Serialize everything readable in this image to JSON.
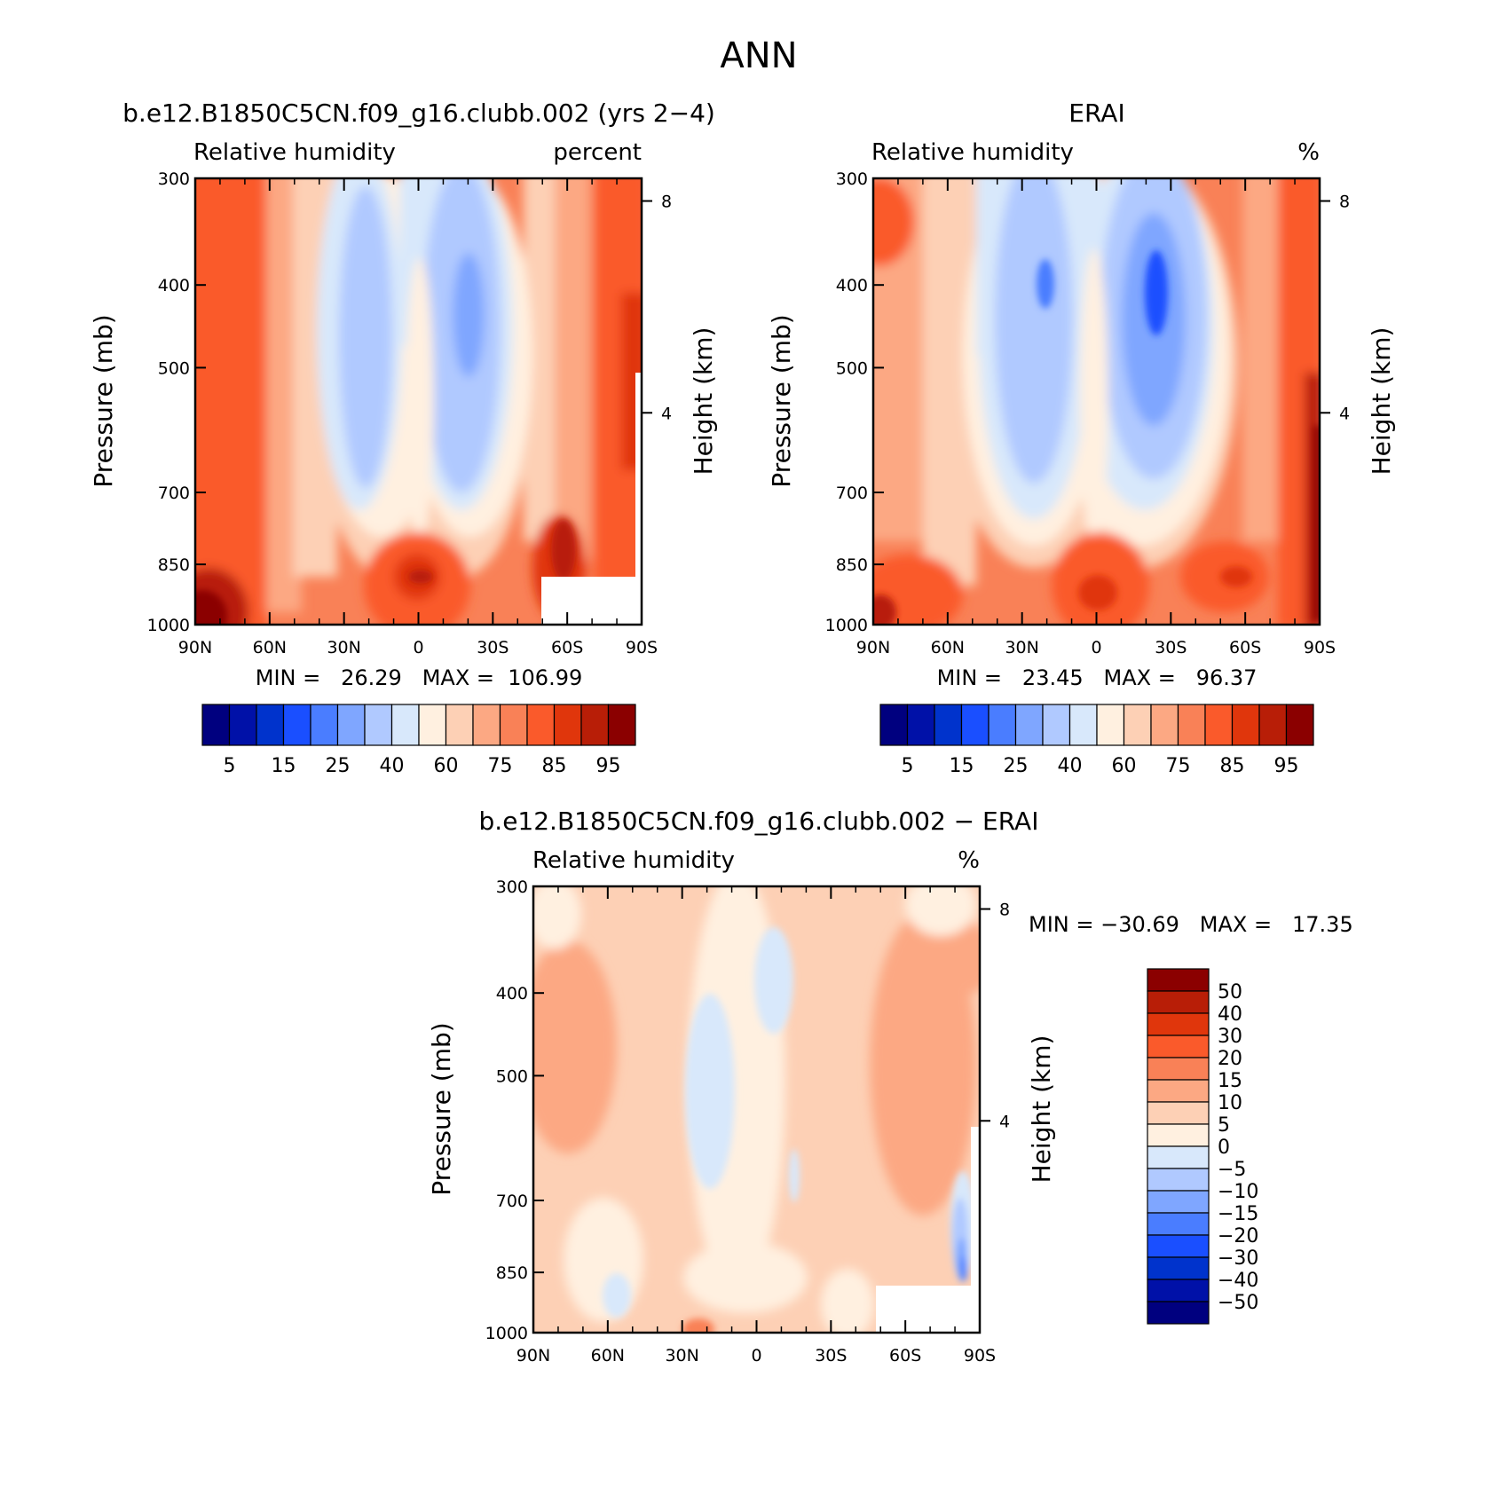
{
  "figure": {
    "title": "ANN"
  },
  "colors": {
    "full_scale": [
      "#00007f",
      "#0011a8",
      "#0033cc",
      "#1a4fff",
      "#4a7dff",
      "#7fa6ff",
      "#b0c9ff",
      "#d8e8fb",
      "#fff0e0",
      "#fdd0b5",
      "#fca883",
      "#f98157",
      "#fa5a2b",
      "#e0360c",
      "#b81e07",
      "#8b0000"
    ],
    "diff_scale": [
      "#00007f",
      "#0011a8",
      "#0033cc",
      "#1a4fff",
      "#4a7dff",
      "#7fa6ff",
      "#b0c9ff",
      "#d8e8fb",
      "#fff0e0",
      "#fdd0b5",
      "#fca883",
      "#f98157",
      "#fa5a2b",
      "#e0360c",
      "#b81e07",
      "#8b0000"
    ]
  },
  "chart_data": [
    {
      "type": "heatmap",
      "panel": "model",
      "title": "b.e12.B1850C5CN.f09_g16.clubb.002 (yrs 2−4)",
      "variable": "Relative humidity",
      "units": "percent",
      "xlabel": "",
      "ylabel": "Pressure (mb)",
      "ylabel_right": "Height (km)",
      "x_ticks": [
        "90N",
        "60N",
        "30N",
        "0",
        "30S",
        "60S",
        "90S"
      ],
      "y_ticks": [
        "300",
        "400",
        "500",
        "700",
        "850",
        "1000"
      ],
      "right_ticks": [
        "8",
        "4"
      ],
      "stats_text": "MIN =   26.29   MAX =  106.99",
      "min": 26.29,
      "max": 106.99,
      "colorbar_labels": [
        "5",
        "15",
        "25",
        "40",
        "60",
        "75",
        "85",
        "95"
      ],
      "levels": [
        5,
        10,
        15,
        20,
        25,
        30,
        40,
        50,
        60,
        65,
        70,
        75,
        80,
        85,
        90,
        95
      ]
    },
    {
      "type": "heatmap",
      "panel": "obs",
      "title": "ERAI",
      "variable": "Relative humidity",
      "units": "%",
      "xlabel": "",
      "ylabel": "Pressure (mb)",
      "ylabel_right": "Height (km)",
      "x_ticks": [
        "90N",
        "60N",
        "30N",
        "0",
        "30S",
        "60S",
        "90S"
      ],
      "y_ticks": [
        "300",
        "400",
        "500",
        "700",
        "850",
        "1000"
      ],
      "right_ticks": [
        "8",
        "4"
      ],
      "stats_text": "MIN =   23.45   MAX =   96.37",
      "min": 23.45,
      "max": 96.37,
      "colorbar_labels": [
        "5",
        "15",
        "25",
        "40",
        "60",
        "75",
        "85",
        "95"
      ],
      "levels": [
        5,
        10,
        15,
        20,
        25,
        30,
        40,
        50,
        60,
        65,
        70,
        75,
        80,
        85,
        90,
        95
      ]
    },
    {
      "type": "heatmap",
      "panel": "diff",
      "title": "b.e12.B1850C5CN.f09_g16.clubb.002 − ERAI",
      "variable": "Relative humidity",
      "units": "%",
      "xlabel": "",
      "ylabel": "Pressure (mb)",
      "ylabel_right": "Height (km)",
      "x_ticks": [
        "90N",
        "60N",
        "30N",
        "0",
        "30S",
        "60S",
        "90S"
      ],
      "y_ticks": [
        "300",
        "400",
        "500",
        "700",
        "850",
        "1000"
      ],
      "right_ticks": [
        "8",
        "4"
      ],
      "stats_text": "MIN = −30.69   MAX =   17.35",
      "min": -30.69,
      "max": 17.35,
      "colorbar_labels": [
        "50",
        "40",
        "30",
        "20",
        "15",
        "10",
        "5",
        "0",
        "−5",
        "−10",
        "−15",
        "−20",
        "−30",
        "−40",
        "−50"
      ],
      "levels": [
        -50,
        -40,
        -30,
        -20,
        -15,
        -10,
        -5,
        0,
        5,
        10,
        15,
        20,
        30,
        40,
        50
      ]
    }
  ]
}
